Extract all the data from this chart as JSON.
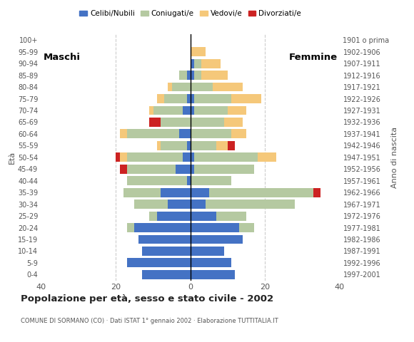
{
  "age_groups": [
    "0-4",
    "5-9",
    "10-14",
    "15-19",
    "20-24",
    "25-29",
    "30-34",
    "35-39",
    "40-44",
    "45-49",
    "50-54",
    "55-59",
    "60-64",
    "65-69",
    "70-74",
    "75-79",
    "80-84",
    "85-89",
    "90-94",
    "95-99",
    "100+"
  ],
  "birth_years": [
    "1997-2001",
    "1992-1996",
    "1987-1991",
    "1982-1986",
    "1977-1981",
    "1972-1976",
    "1967-1971",
    "1962-1966",
    "1957-1961",
    "1952-1956",
    "1947-1951",
    "1942-1946",
    "1937-1941",
    "1932-1936",
    "1927-1931",
    "1922-1926",
    "1917-1921",
    "1912-1916",
    "1907-1911",
    "1902-1906",
    "1901 o prima"
  ],
  "males": {
    "celibi": [
      13,
      17,
      13,
      14,
      15,
      9,
      6,
      8,
      1,
      4,
      2,
      1,
      3,
      0,
      2,
      1,
      0,
      1,
      0,
      0,
      0
    ],
    "coniugati": [
      0,
      0,
      0,
      0,
      2,
      2,
      9,
      10,
      16,
      13,
      15,
      7,
      14,
      8,
      8,
      6,
      5,
      2,
      0,
      0,
      0
    ],
    "vedovi": [
      0,
      0,
      0,
      0,
      0,
      0,
      0,
      0,
      0,
      0,
      2,
      1,
      2,
      0,
      1,
      2,
      1,
      0,
      0,
      0,
      0
    ],
    "divorziati": [
      0,
      0,
      0,
      0,
      0,
      0,
      0,
      0,
      0,
      2,
      1,
      0,
      0,
      3,
      0,
      0,
      0,
      0,
      0,
      0,
      0
    ]
  },
  "females": {
    "nubili": [
      12,
      11,
      9,
      14,
      13,
      7,
      4,
      5,
      0,
      1,
      1,
      0,
      0,
      0,
      1,
      1,
      0,
      1,
      1,
      0,
      0
    ],
    "coniugate": [
      0,
      0,
      0,
      0,
      4,
      8,
      24,
      28,
      11,
      16,
      17,
      7,
      11,
      9,
      9,
      10,
      6,
      2,
      2,
      0,
      0
    ],
    "vedove": [
      0,
      0,
      0,
      0,
      0,
      0,
      0,
      0,
      0,
      0,
      5,
      3,
      4,
      5,
      5,
      8,
      8,
      7,
      5,
      4,
      0
    ],
    "divorziate": [
      0,
      0,
      0,
      0,
      0,
      0,
      0,
      2,
      0,
      0,
      0,
      2,
      0,
      0,
      0,
      0,
      0,
      0,
      0,
      0,
      0
    ]
  },
  "colors": {
    "celibi": "#4472c4",
    "coniugati": "#b5c9a1",
    "vedovi": "#f5c87a",
    "divorziati": "#cc2222"
  },
  "title": "Popolazione per età, sesso e stato civile - 2002",
  "subtitle": "COMUNE DI SORMANO (CO) · Dati ISTAT 1° gennaio 2002 · Elaborazione TUTTITALIA.IT",
  "xlabel_left": "Maschi",
  "xlabel_right": "Femmine",
  "ylabel_left": "Età",
  "ylabel_right": "Anno di nascita",
  "xlim": 40,
  "legend_labels": [
    "Celibi/Nubili",
    "Coniugati/e",
    "Vedovi/e",
    "Divorziati/e"
  ],
  "bg_color": "#ffffff",
  "grid_color": "#cccccc"
}
